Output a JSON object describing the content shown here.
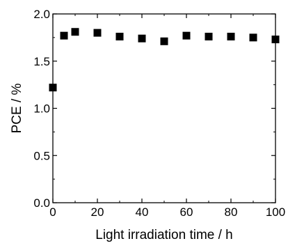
{
  "chart_data": {
    "type": "scatter",
    "xlabel": "Light irradiation time / h",
    "ylabel": "PCE / %",
    "xlim": [
      0,
      100
    ],
    "ylim": [
      0.0,
      2.0
    ],
    "x_ticks": [
      0,
      20,
      40,
      60,
      80,
      100
    ],
    "x_tick_labels": [
      "0",
      "20",
      "40",
      "60",
      "80",
      "100"
    ],
    "y_ticks": [
      0.0,
      0.5,
      1.0,
      1.5,
      2.0
    ],
    "y_tick_labels": [
      "0.0",
      "0.5",
      "1.0",
      "1.5",
      "2.0"
    ],
    "grid": false,
    "marker": "square",
    "marker_color": "#000000",
    "series": [
      {
        "x": [
          0,
          5,
          10,
          20,
          30,
          40,
          50,
          60,
          70,
          80,
          90,
          100
        ],
        "y": [
          1.22,
          1.77,
          1.81,
          1.8,
          1.76,
          1.74,
          1.71,
          1.77,
          1.76,
          1.76,
          1.75,
          1.73
        ]
      }
    ]
  }
}
